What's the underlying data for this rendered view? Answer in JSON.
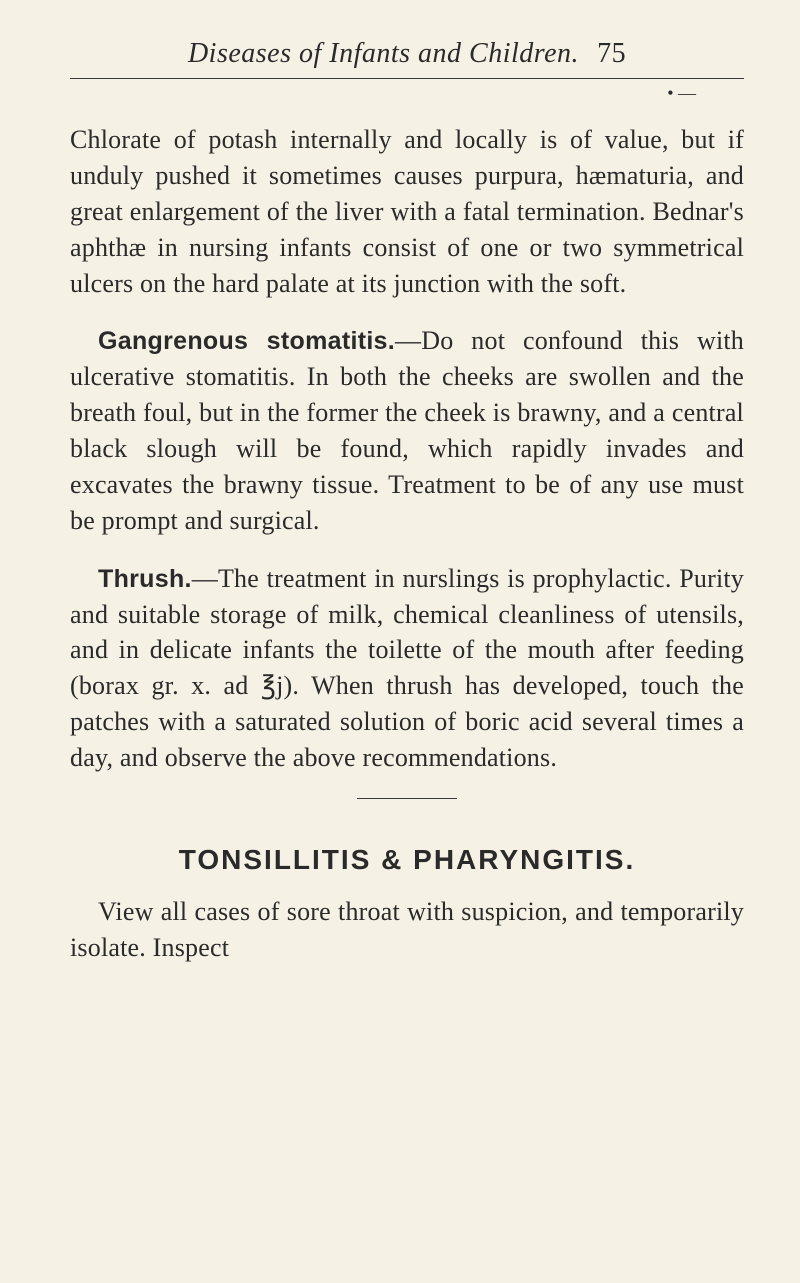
{
  "header": {
    "title": "Diseases of Infants and Children.",
    "page": "75"
  },
  "tick": "• —",
  "paragraphs": {
    "p1": "Chlorate of potash internally and locally is of value, but if unduly pushed it sometimes causes purpura, hæmaturia, and great en­largement of the liver with a fatal termina­tion. Bednar's aphthæ in nursing infants consist of one or two symmetrical ulcers on the hard palate at its junction with the soft.",
    "p2_head": "Gangrenous stomatitis.",
    "p2_body": "—Do not con­found this with ulcerative stomatitis. In both the cheeks are swollen and the breath foul, but in the former the cheek is brawny, and a central black slough will be found, which rapidly invades and excavates the brawny tissue. Treatment to be of any use must be prompt and surgical.",
    "p3_head": "Thrush.",
    "p3_body": "—The treatment in nurslings is prophylactic. Purity and suitable storage of milk, chemical cleanliness of utensils, and in delicate infants the toilette of the mouth after feeding (borax gr. x. ad ℥j). When thrush has developed, touch the patches with a saturated solution of boric acid several times a day, and observe the above recommendations.",
    "section_title": "TONSILLITIS & PHARYNGITIS.",
    "p4": "View all cases of sore throat with sus­picion, and temporarily isolate. Inspect"
  }
}
